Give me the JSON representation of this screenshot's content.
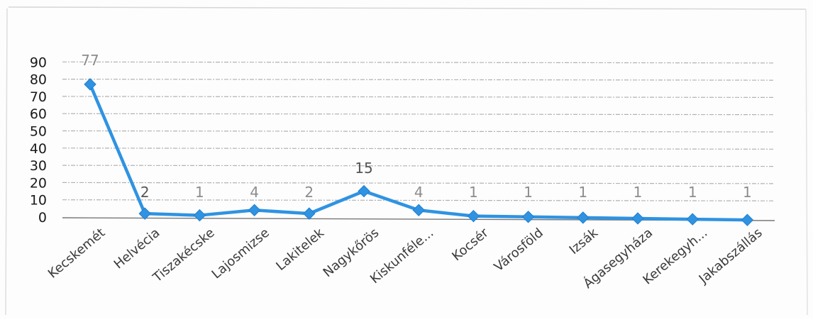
{
  "chart_data": {
    "type": "line",
    "title": "",
    "xlabel": "",
    "ylabel": "",
    "categories": [
      "Kecskemét",
      "Helvécia",
      "Tiszakécske",
      "Lajosmizse",
      "Lakitelek",
      "Nagykőrös",
      "Kiskunféle...",
      "Kocsér",
      "Városföld",
      "Izsák",
      "Ágasegyháza",
      "Kerekegyh...",
      "Jakabszállás"
    ],
    "values": [
      77,
      2,
      1,
      4,
      2,
      15,
      4,
      1,
      1,
      1,
      1,
      1,
      1
    ],
    "data_labels": [
      "77",
      "2",
      "1",
      "4",
      "2",
      "15",
      "4",
      "1",
      "1",
      "1",
      "1",
      "1",
      "1"
    ],
    "ylim": [
      0,
      90
    ],
    "yticks": [
      "0",
      "10",
      "20",
      "30",
      "40",
      "50",
      "60",
      "70",
      "80",
      "90"
    ],
    "grid": true,
    "legend": "none",
    "colors": {
      "line": "#2f93e2",
      "marker": "#2f93e2",
      "grid": "#9a9a9a",
      "axis": "#777777",
      "data_label": "#8c8c8c",
      "data_label_dark": "#555555"
    }
  }
}
